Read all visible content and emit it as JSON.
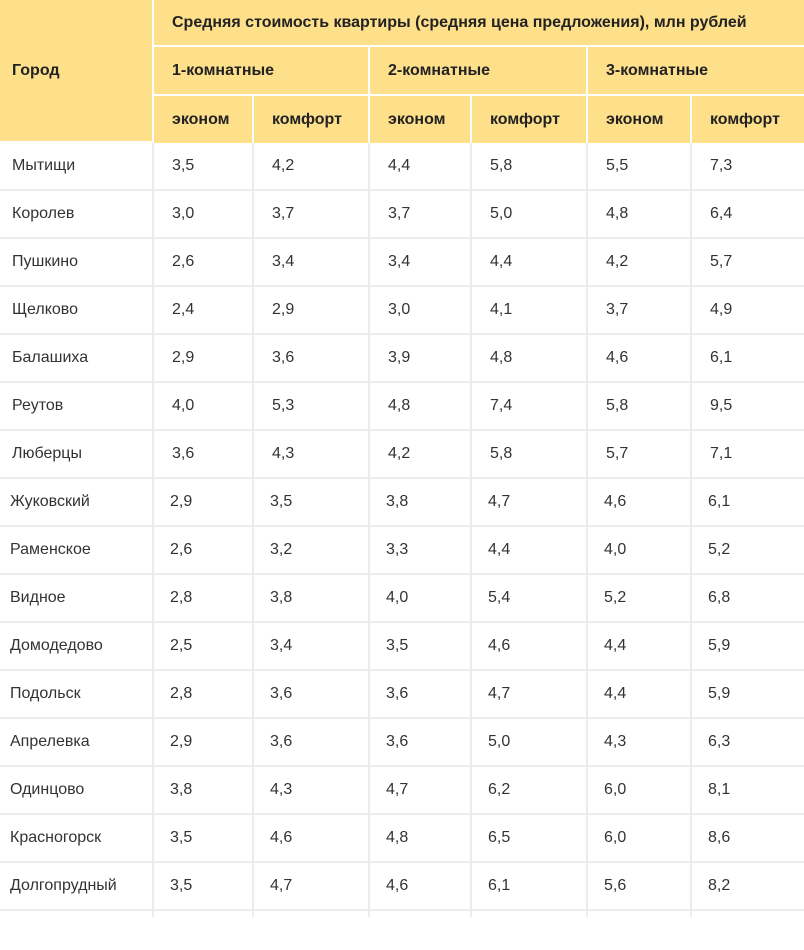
{
  "table": {
    "header": {
      "city": "Город",
      "group_title": "Средняя стоимость квартиры (средняя цена предложения), млн рублей",
      "room_groups": [
        "1-комнатные",
        "2-комнатные",
        "3-комнатные"
      ],
      "classes": [
        "эконом",
        "комфорт",
        "эконом",
        "комфорт",
        "эконом",
        "комфорт"
      ]
    },
    "rows": [
      {
        "city": "Мытищи",
        "values": [
          "3,5",
          "4,2",
          "4,4",
          "5,8",
          "5,5",
          "7,3"
        ]
      },
      {
        "city": "Королев",
        "values": [
          "3,0",
          "3,7",
          "3,7",
          "5,0",
          "4,8",
          "6,4"
        ]
      },
      {
        "city": "Пушкино",
        "values": [
          "2,6",
          "3,4",
          "3,4",
          "4,4",
          "4,2",
          "5,7"
        ]
      },
      {
        "city": "Щелково",
        "values": [
          "2,4",
          "2,9",
          "3,0",
          "4,1",
          "3,7",
          "4,9"
        ]
      },
      {
        "city": "Балашиха",
        "values": [
          "2,9",
          "3,6",
          "3,9",
          "4,8",
          "4,6",
          "6,1"
        ]
      },
      {
        "city": "Реутов",
        "values": [
          "4,0",
          "5,3",
          "4,8",
          "7,4",
          "5,8",
          "9,5"
        ]
      },
      {
        "city": "Люберцы",
        "values": [
          "3,6",
          "4,3",
          "4,2",
          "5,8",
          "5,7",
          "7,1"
        ]
      },
      {
        "city": "Жуковский",
        "values": [
          "2,9",
          "3,5",
          "3,8",
          "4,7",
          "4,6",
          "6,1"
        ]
      },
      {
        "city": "Раменское",
        "values": [
          "2,6",
          "3,2",
          "3,3",
          "4,4",
          "4,0",
          "5,2"
        ]
      },
      {
        "city": "Видное",
        "values": [
          "2,8",
          "3,8",
          "4,0",
          "5,4",
          "5,2",
          "6,8"
        ]
      },
      {
        "city": "Домодедово",
        "values": [
          "2,5",
          "3,4",
          "3,5",
          "4,6",
          "4,4",
          "5,9"
        ]
      },
      {
        "city": "Подольск",
        "values": [
          "2,8",
          "3,6",
          "3,6",
          "4,7",
          "4,4",
          "5,9"
        ]
      },
      {
        "city": "Апрелевка",
        "values": [
          "2,9",
          "3,6",
          "3,6",
          "5,0",
          "4,3",
          "6,3"
        ]
      },
      {
        "city": "Одинцово",
        "values": [
          "3,8",
          "4,3",
          "4,7",
          "6,2",
          "6,0",
          "8,1"
        ]
      },
      {
        "city": "Красногорск",
        "values": [
          "3,5",
          "4,6",
          "4,8",
          "6,5",
          "6,0",
          "8,6"
        ]
      },
      {
        "city": "Долгопрудный",
        "values": [
          "3,5",
          "4,7",
          "4,6",
          "6,1",
          "5,6",
          "8,2"
        ]
      }
    ]
  },
  "colors": {
    "header_bg": "#fedf8a",
    "grid_line": "#ececec",
    "text": "#333333"
  }
}
